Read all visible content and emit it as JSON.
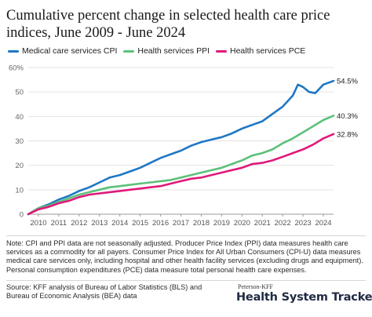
{
  "title": "Cumulative percent change in selected health care price indices, June 2009 - June 2024",
  "note": "Note: CPI and PPI data are not seasonally adjusted. Producer Price Index (PPI) data measures health care services as a commodity for all payers. Consumer Price Index for All Urban Consumers (CPI-U) data measures medical care services only, including hospital and other health facility services (excluding drugs and equipment). Personal consumption expenditures (PCE) data measure total personal health care expenses.",
  "source": "Source: KFF analysis of Bureau of Labor Statistics (BLS) and Bureau of Economic Analysis (BEA) data",
  "brand": {
    "top": "Peterson-KFF",
    "main": "Health System Tracker"
  },
  "chart_data": {
    "type": "line",
    "title": "Cumulative percent change in selected health care price indices, June 2009 - June 2024",
    "xlabel": "",
    "ylabel": "",
    "xlim": [
      2009.5,
      2024.5
    ],
    "ylim": [
      0,
      60
    ],
    "yticks": [
      0,
      10,
      20,
      30,
      40,
      50,
      60
    ],
    "ytick_labels": [
      "0",
      "10",
      "20",
      "30",
      "40",
      "50",
      "60%"
    ],
    "xticks": [
      2010,
      2011,
      2012,
      2013,
      2014,
      2015,
      2016,
      2017,
      2018,
      2019,
      2020,
      2021,
      2022,
      2023,
      2024
    ],
    "xtick_labels": [
      "2010",
      "2011",
      "2012",
      "2013",
      "2014",
      "2015",
      "2016",
      "2017",
      "2018",
      "2019",
      "2020",
      "2021",
      "2022",
      "2023",
      "2024"
    ],
    "grid": true,
    "legend_position": "top-left",
    "series": [
      {
        "name": "Medical care services CPI",
        "color": "#1f77c4",
        "end_label": "54.5%",
        "x": [
          2009.5,
          2010.0,
          2010.5,
          2011.0,
          2011.5,
          2012.0,
          2012.5,
          2013.0,
          2013.5,
          2014.0,
          2014.5,
          2015.0,
          2015.5,
          2016.0,
          2016.5,
          2017.0,
          2017.5,
          2018.0,
          2018.5,
          2019.0,
          2019.5,
          2020.0,
          2020.5,
          2021.0,
          2021.5,
          2022.0,
          2022.5,
          2022.75,
          2023.0,
          2023.3,
          2023.6,
          2024.0,
          2024.5
        ],
        "y": [
          0,
          2.5,
          4,
          6,
          7.5,
          9.5,
          11,
          13,
          15,
          16,
          17.5,
          19,
          21,
          23,
          24.5,
          26,
          28,
          29.5,
          30.5,
          31.5,
          33,
          35,
          36.5,
          38,
          41,
          44,
          48.5,
          53,
          52,
          50,
          49.5,
          53,
          54.5
        ]
      },
      {
        "name": "Health services PPI",
        "color": "#5cc17a",
        "end_label": "40.3%",
        "x": [
          2009.5,
          2010.0,
          2010.5,
          2011.0,
          2011.5,
          2012.0,
          2012.5,
          2013.0,
          2013.5,
          2014.0,
          2014.5,
          2015.0,
          2015.5,
          2016.0,
          2016.5,
          2017.0,
          2017.5,
          2018.0,
          2018.5,
          2019.0,
          2019.5,
          2020.0,
          2020.5,
          2021.0,
          2021.5,
          2022.0,
          2022.5,
          2023.0,
          2023.5,
          2024.0,
          2024.5
        ],
        "y": [
          0,
          2.5,
          3.5,
          5,
          6.5,
          8,
          9,
          10,
          11,
          11.5,
          12,
          12.5,
          13,
          13.5,
          14,
          15,
          16,
          17,
          18,
          19,
          20.5,
          22,
          24,
          25,
          26.5,
          29,
          31,
          33.5,
          36,
          38.5,
          40.3
        ]
      },
      {
        "name": "Health services PCE",
        "color": "#e0197a",
        "end_label": "32.8%",
        "x": [
          2009.5,
          2010.0,
          2010.5,
          2011.0,
          2011.5,
          2012.0,
          2012.5,
          2013.0,
          2013.5,
          2014.0,
          2014.5,
          2015.0,
          2015.5,
          2016.0,
          2016.5,
          2017.0,
          2017.5,
          2018.0,
          2018.5,
          2019.0,
          2019.5,
          2020.0,
          2020.5,
          2021.0,
          2021.5,
          2022.0,
          2022.5,
          2023.0,
          2023.5,
          2024.0,
          2024.5
        ],
        "y": [
          0,
          2,
          3,
          4.5,
          5.5,
          7,
          8,
          8.5,
          9,
          9.5,
          10,
          10.5,
          11,
          11.5,
          12.5,
          13.5,
          14.5,
          15,
          16,
          17,
          18,
          19,
          20.5,
          21,
          22,
          23.5,
          25,
          26.5,
          28.5,
          31,
          32.8
        ]
      }
    ]
  }
}
